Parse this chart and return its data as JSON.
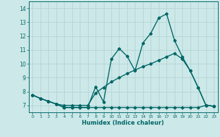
{
  "title": "",
  "xlabel": "Humidex (Indice chaleur)",
  "ylabel": "",
  "bg_color": "#cce8e8",
  "line_color": "#006666",
  "grid_color": "#b0d0d0",
  "xlim": [
    -0.5,
    23.5
  ],
  "ylim": [
    6.5,
    14.5
  ],
  "xticks": [
    0,
    1,
    2,
    3,
    4,
    5,
    6,
    7,
    8,
    9,
    10,
    11,
    12,
    13,
    14,
    15,
    16,
    17,
    18,
    19,
    20,
    21,
    22,
    23
  ],
  "yticks": [
    7,
    8,
    9,
    10,
    11,
    12,
    13,
    14
  ],
  "line1_x": [
    0,
    1,
    2,
    3,
    4,
    5,
    6,
    7,
    8,
    9,
    10,
    11,
    12,
    13,
    14,
    15,
    16,
    17,
    18,
    19,
    20,
    21,
    22,
    23
  ],
  "line1_y": [
    7.75,
    7.5,
    7.3,
    7.1,
    6.85,
    6.85,
    6.85,
    6.85,
    8.35,
    7.25,
    10.35,
    11.1,
    10.55,
    9.5,
    11.5,
    12.2,
    13.3,
    13.6,
    11.7,
    10.5,
    9.5,
    8.3,
    7.0,
    6.95
  ],
  "line2_x": [
    0,
    1,
    2,
    3,
    4,
    5,
    6,
    7,
    8,
    9,
    10,
    11,
    12,
    13,
    14,
    15,
    16,
    17,
    18,
    19,
    20,
    21,
    22,
    23
  ],
  "line2_y": [
    7.75,
    7.5,
    7.3,
    7.1,
    7.0,
    7.0,
    7.0,
    7.0,
    7.9,
    8.3,
    8.7,
    9.0,
    9.3,
    9.55,
    9.8,
    10.0,
    10.25,
    10.5,
    10.75,
    10.35,
    9.5,
    8.3,
    7.0,
    6.95
  ],
  "line3_x": [
    0,
    1,
    2,
    3,
    4,
    5,
    6,
    7,
    8,
    9,
    10,
    11,
    12,
    13,
    14,
    15,
    16,
    17,
    18,
    19,
    20,
    21,
    22,
    23
  ],
  "line3_y": [
    7.75,
    7.5,
    7.3,
    7.1,
    6.85,
    6.85,
    6.85,
    6.85,
    6.85,
    6.85,
    6.85,
    6.85,
    6.85,
    6.85,
    6.85,
    6.85,
    6.85,
    6.85,
    6.85,
    6.85,
    6.85,
    6.85,
    7.0,
    6.95
  ],
  "marker": "D",
  "markersize": 2.0,
  "linewidth": 1.0
}
